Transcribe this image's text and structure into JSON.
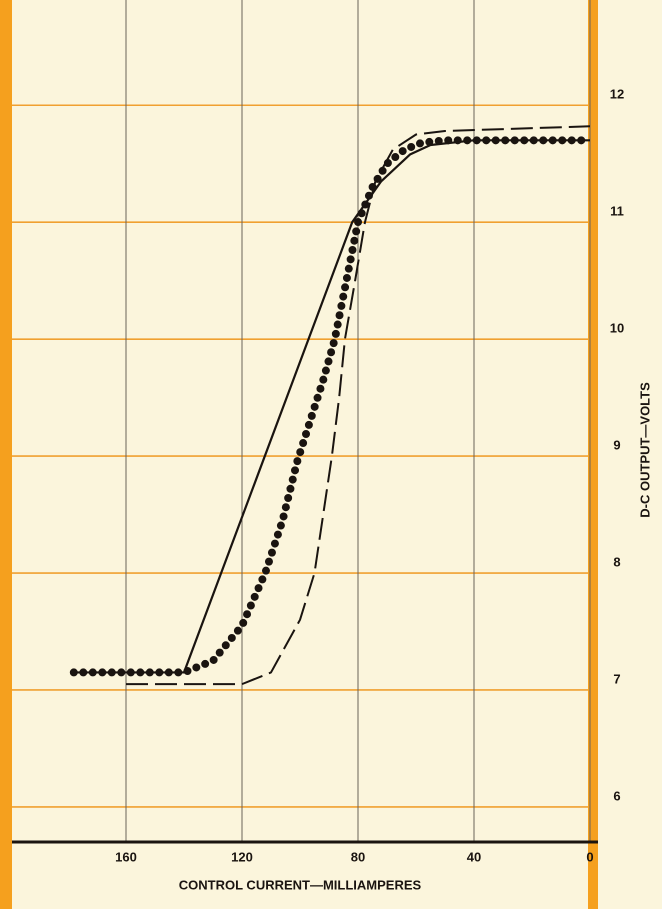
{
  "chart_data": {
    "type": "line",
    "xlabel": "CONTROL CURRENT—MILLIAMPERES",
    "ylabel": "D-C OUTPUT—VOLTS",
    "xlim": [
      200,
      0
    ],
    "ylim": [
      5.7,
      12.9
    ],
    "xticks": [
      160,
      120,
      80,
      40,
      0
    ],
    "yticks": [
      6,
      7,
      8,
      9,
      10,
      11,
      12
    ],
    "grid": true,
    "series": [
      {
        "color": "#1a1410",
        "style": "solid",
        "x": [
          178,
          140,
          82,
          72,
          62,
          55,
          40,
          0
        ],
        "values": [
          7.15,
          7.15,
          11.0,
          11.35,
          11.58,
          11.66,
          11.7,
          11.7
        ]
      },
      {
        "color": "#1a1410",
        "style": "dotted",
        "x": [
          178,
          140,
          130,
          120,
          112,
          106,
          101,
          96.5,
          92,
          88,
          84,
          80,
          75,
          70,
          64,
          58,
          50,
          30,
          0
        ],
        "values": [
          7.15,
          7.15,
          7.25,
          7.55,
          8.0,
          8.45,
          8.95,
          9.3,
          9.65,
          10.0,
          10.5,
          11.0,
          11.3,
          11.5,
          11.62,
          11.68,
          11.7,
          11.7,
          11.7
        ]
      },
      {
        "color": "#1a1410",
        "style": "dashed",
        "x": [
          160,
          120,
          110,
          100,
          95,
          92,
          89,
          86.5,
          84.5,
          81,
          77.6,
          74,
          68,
          60,
          50,
          0
        ],
        "values": [
          7.05,
          7.05,
          7.15,
          7.6,
          8.0,
          8.5,
          9.0,
          9.5,
          10.0,
          10.5,
          11.0,
          11.35,
          11.62,
          11.75,
          11.78,
          11.82
        ]
      }
    ]
  }
}
